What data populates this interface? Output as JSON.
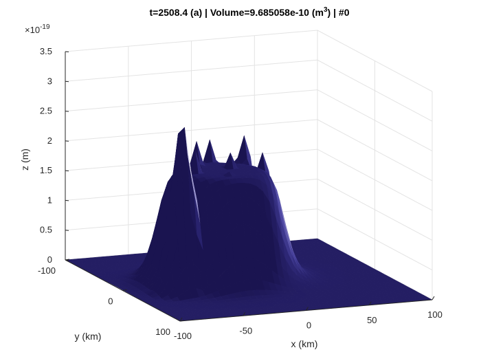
{
  "chart_data": {
    "type": "surface",
    "title": {
      "prefix": "t=2508.4 (a) | Volume=9.685058e-10 (m",
      "sup": "3",
      "suffix": ") | #0"
    },
    "xlabel": "x (km)",
    "ylabel": "y (km)",
    "zlabel": "z (m)",
    "z_exponent_label": {
      "base": "×10",
      "exp": "-19"
    },
    "xlim": [
      -100,
      100
    ],
    "ylim": [
      -100,
      100
    ],
    "zlim": [
      0,
      3.5
    ],
    "x_ticks": [
      -100,
      -50,
      0,
      50,
      100
    ],
    "y_ticks": [
      -100,
      0,
      100
    ],
    "z_ticks": [
      0,
      0.5,
      1,
      1.5,
      2,
      2.5,
      3,
      3.5
    ],
    "x_tick_labels": [
      "-100",
      "-50",
      "0",
      "50",
      "100"
    ],
    "y_tick_labels": [
      "-100",
      "0",
      "100"
    ],
    "z_tick_labels": [
      "0",
      "0.5",
      "1",
      "1.5",
      "2",
      "2.5",
      "3",
      "3.5"
    ],
    "grid": true,
    "colormap": [
      "#1a1450",
      "#2a2470",
      "#4a44a0",
      "#8f8ac8",
      "#d8d6ee",
      "#f6f5fb"
    ],
    "peaks": [
      {
        "x": -62,
        "y": 20,
        "z": 2.85
      },
      {
        "x": -40,
        "y": -5,
        "z": 2.2
      },
      {
        "x": -30,
        "y": -25,
        "z": 2.25
      },
      {
        "x": -15,
        "y": -35,
        "z": 2.2
      },
      {
        "x": -10,
        "y": -10,
        "z": 2.1
      },
      {
        "x": 10,
        "y": -30,
        "z": 2.25
      },
      {
        "x": 20,
        "y": -20,
        "z": 2.0
      },
      {
        "x": -20,
        "y": 10,
        "z": 1.9
      }
    ]
  }
}
